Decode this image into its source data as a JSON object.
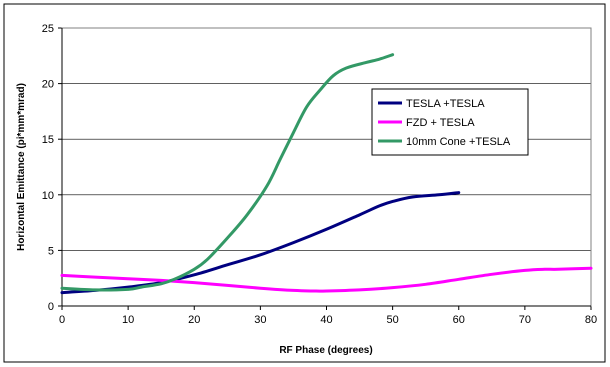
{
  "chart_data": {
    "type": "line",
    "title": "",
    "xlabel": "RF Phase (degrees)",
    "ylabel": "Horizontal Emittance (pi*mm*mrad)",
    "xlim": [
      0,
      80
    ],
    "ylim": [
      0,
      25
    ],
    "x_ticks": [
      "0",
      "10",
      "20",
      "30",
      "40",
      "50",
      "60",
      "70",
      "80"
    ],
    "y_ticks": [
      "0",
      "5",
      "10",
      "15",
      "20",
      "25"
    ],
    "grid": "horizontal",
    "legend_position": "right",
    "series": [
      {
        "name": "TESLA +TESLA",
        "color": "#000080",
        "points": [
          [
            0,
            1.2
          ],
          [
            5,
            1.4
          ],
          [
            10,
            1.7
          ],
          [
            15,
            2.1
          ],
          [
            20,
            2.8
          ],
          [
            25,
            3.7
          ],
          [
            30,
            4.6
          ],
          [
            35,
            5.7
          ],
          [
            40,
            6.9
          ],
          [
            45,
            8.2
          ],
          [
            48,
            9.0
          ],
          [
            50,
            9.4
          ],
          [
            53,
            9.8
          ],
          [
            57,
            10.0
          ],
          [
            60,
            10.2
          ]
        ]
      },
      {
        "name": "FZD + TESLA",
        "color": "#ff00ff",
        "points": [
          [
            0,
            2.75
          ],
          [
            5,
            2.6
          ],
          [
            10,
            2.45
          ],
          [
            15,
            2.3
          ],
          [
            20,
            2.1
          ],
          [
            25,
            1.85
          ],
          [
            30,
            1.6
          ],
          [
            35,
            1.4
          ],
          [
            38,
            1.35
          ],
          [
            40,
            1.35
          ],
          [
            45,
            1.45
          ],
          [
            50,
            1.65
          ],
          [
            55,
            1.95
          ],
          [
            60,
            2.4
          ],
          [
            65,
            2.85
          ],
          [
            70,
            3.2
          ],
          [
            73,
            3.3
          ],
          [
            75,
            3.3
          ],
          [
            80,
            3.4
          ]
        ]
      },
      {
        "name": "10mm Cone +TESLA",
        "color": "#339966",
        "points": [
          [
            0,
            1.6
          ],
          [
            5,
            1.45
          ],
          [
            10,
            1.5
          ],
          [
            12,
            1.7
          ],
          [
            15,
            2.0
          ],
          [
            17,
            2.4
          ],
          [
            20,
            3.3
          ],
          [
            22,
            4.2
          ],
          [
            25,
            6.1
          ],
          [
            28,
            8.2
          ],
          [
            31,
            10.8
          ],
          [
            33,
            13.2
          ],
          [
            35,
            15.6
          ],
          [
            37,
            17.9
          ],
          [
            39,
            19.4
          ],
          [
            41,
            20.7
          ],
          [
            43,
            21.4
          ],
          [
            46,
            21.9
          ],
          [
            48,
            22.2
          ],
          [
            50,
            22.6
          ]
        ]
      }
    ]
  }
}
